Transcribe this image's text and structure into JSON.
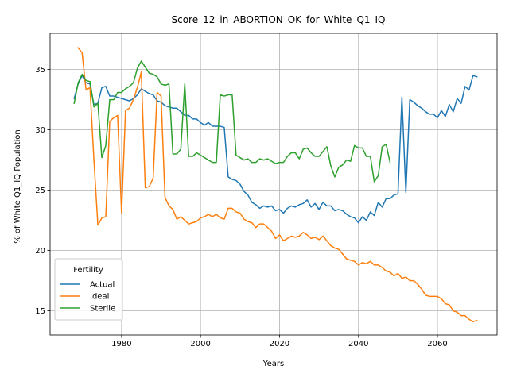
{
  "chart_data": {
    "type": "line",
    "title": "Score_12_in_ABORTION_OK_for_White_Q1_IQ",
    "xlabel": "Years",
    "ylabel": "% of White Q1_IQ Population",
    "xlim": [
      1961.9,
      2075.1
    ],
    "ylim": [
      13.0,
      38.0
    ],
    "xticks": [
      1980,
      2000,
      2020,
      2040,
      2060
    ],
    "yticks": [
      15,
      20,
      25,
      30,
      35
    ],
    "grid": true,
    "legend": {
      "title": "Fertility",
      "position": "lower-left"
    },
    "series": [
      {
        "name": "Actual",
        "color": "#1f77b4",
        "x": [
          1968,
          1969,
          1970,
          1971,
          1972,
          1973,
          1974,
          1975,
          1976,
          1977,
          1978,
          1979,
          1980,
          1981,
          1982,
          1983,
          1984,
          1985,
          1986,
          1987,
          1988,
          1989,
          1990,
          1991,
          1992,
          1993,
          1994,
          1995,
          1996,
          1997,
          1998,
          1999,
          2000,
          2001,
          2002,
          2003,
          2004,
          2005,
          2006,
          2007,
          2008,
          2009,
          2010,
          2011,
          2012,
          2013,
          2014,
          2015,
          2016,
          2017,
          2018,
          2019,
          2020,
          2021,
          2022,
          2023,
          2024,
          2025,
          2026,
          2027,
          2028,
          2029,
          2030,
          2031,
          2032,
          2033,
          2034,
          2035,
          2036,
          2037,
          2038,
          2039,
          2040,
          2041,
          2042,
          2043,
          2044,
          2045,
          2046,
          2047,
          2048,
          2049,
          2050,
          2051,
          2052,
          2053,
          2054,
          2055,
          2056,
          2057,
          2058,
          2059,
          2060,
          2061,
          2062,
          2063,
          2064,
          2065,
          2066,
          2067,
          2068,
          2069,
          2070
        ],
        "y": [
          32.6,
          33.8,
          34.5,
          33.9,
          33.8,
          32.1,
          32.2,
          33.5,
          33.6,
          32.8,
          32.8,
          32.7,
          32.6,
          32.5,
          32.4,
          32.6,
          32.9,
          33.4,
          33.2,
          33.0,
          32.9,
          32.4,
          32.3,
          32.0,
          31.9,
          31.8,
          31.8,
          31.5,
          31.2,
          31.2,
          30.9,
          30.9,
          30.6,
          30.4,
          30.6,
          30.3,
          30.3,
          30.3,
          30.2,
          26.1,
          25.9,
          25.8,
          25.5,
          24.9,
          24.6,
          24.0,
          23.8,
          23.5,
          23.7,
          23.6,
          23.7,
          23.3,
          23.4,
          23.1,
          23.5,
          23.7,
          23.6,
          23.8,
          23.9,
          24.2,
          23.6,
          23.9,
          23.4,
          24.0,
          23.7,
          23.7,
          23.3,
          23.4,
          23.3,
          23.0,
          22.8,
          22.7,
          22.3,
          22.8,
          22.5,
          23.2,
          22.9,
          24.0,
          23.6,
          24.3,
          24.3,
          24.6,
          24.7,
          32.7,
          24.8,
          32.5,
          32.3,
          32.0,
          31.8,
          31.5,
          31.3,
          31.3,
          31.0,
          31.6,
          31.1,
          32.1,
          31.5,
          32.6,
          32.2,
          33.6,
          33.3,
          34.5,
          34.4
        ]
      },
      {
        "name": "Ideal",
        "color": "#ff7f0e",
        "x": [
          1969,
          1970,
          1971,
          1972,
          1973,
          1974,
          1975,
          1976,
          1977,
          1978,
          1979,
          1980,
          1981,
          1982,
          1983,
          1984,
          1985,
          1986,
          1987,
          1988,
          1989,
          1990,
          1991,
          1992,
          1993,
          1994,
          1995,
          1996,
          1997,
          1998,
          1999,
          2000,
          2001,
          2002,
          2003,
          2004,
          2005,
          2006,
          2007,
          2008,
          2009,
          2010,
          2011,
          2012,
          2013,
          2014,
          2015,
          2016,
          2017,
          2018,
          2019,
          2020,
          2021,
          2022,
          2023,
          2024,
          2025,
          2026,
          2027,
          2028,
          2029,
          2030,
          2031,
          2032,
          2033,
          2034,
          2035,
          2036,
          2037,
          2038,
          2039,
          2040,
          2041,
          2042,
          2043,
          2044,
          2045,
          2046,
          2047,
          2048,
          2049,
          2050,
          2051,
          2052,
          2053,
          2054,
          2055,
          2056,
          2057,
          2058,
          2059,
          2060,
          2061,
          2062,
          2063,
          2064,
          2065,
          2066,
          2067,
          2068,
          2069,
          2070
        ],
        "y": [
          36.8,
          36.4,
          33.3,
          33.5,
          27.5,
          22.1,
          22.7,
          22.8,
          30.7,
          31.0,
          31.2,
          23.1,
          31.6,
          31.8,
          32.5,
          33.5,
          34.8,
          25.2,
          25.3,
          26.0,
          33.1,
          32.8,
          24.4,
          23.7,
          23.4,
          22.6,
          22.8,
          22.5,
          22.2,
          22.3,
          22.4,
          22.7,
          22.8,
          23.0,
          22.8,
          23.0,
          22.7,
          22.6,
          23.5,
          23.5,
          23.2,
          23.1,
          22.6,
          22.4,
          22.3,
          21.9,
          22.2,
          22.2,
          21.9,
          21.6,
          21.0,
          21.3,
          20.8,
          21.0,
          21.2,
          21.1,
          21.2,
          21.5,
          21.3,
          21.0,
          21.1,
          20.9,
          21.2,
          20.8,
          20.4,
          20.2,
          20.1,
          19.7,
          19.3,
          19.2,
          19.1,
          18.8,
          19.0,
          18.9,
          19.1,
          18.8,
          18.8,
          18.6,
          18.3,
          18.2,
          17.9,
          18.1,
          17.7,
          17.8,
          17.5,
          17.5,
          17.2,
          16.8,
          16.3,
          16.2,
          16.2,
          16.2,
          16.0,
          15.6,
          15.5,
          15.0,
          14.9,
          14.6,
          14.6,
          14.3,
          14.1,
          14.2
        ]
      },
      {
        "name": "Sterile",
        "color": "#2ca02c",
        "x": [
          1968,
          1969,
          1970,
          1971,
          1972,
          1973,
          1974,
          1975,
          1976,
          1977,
          1978,
          1979,
          1980,
          1981,
          1982,
          1983,
          1984,
          1985,
          1986,
          1987,
          1988,
          1989,
          1990,
          1991,
          1992,
          1993,
          1994,
          1995,
          1996,
          1997,
          1998,
          1999,
          2000,
          2001,
          2002,
          2003,
          2004,
          2005,
          2006,
          2007,
          2008,
          2009,
          2010,
          2011,
          2012,
          2013,
          2014,
          2015,
          2016,
          2017,
          2018,
          2019,
          2020,
          2021,
          2022,
          2023,
          2024,
          2025,
          2026,
          2027,
          2028,
          2029,
          2030,
          2031,
          2032,
          2033,
          2034,
          2035,
          2036,
          2037,
          2038,
          2039,
          2040,
          2041,
          2042,
          2043,
          2044,
          2045,
          2046,
          2047,
          2048
        ],
        "y": [
          32.2,
          33.9,
          34.6,
          34.1,
          34.0,
          31.9,
          32.2,
          27.7,
          28.7,
          32.5,
          32.5,
          33.1,
          33.1,
          33.4,
          33.6,
          33.9,
          35.1,
          35.7,
          35.2,
          34.7,
          34.6,
          34.4,
          33.8,
          33.7,
          33.8,
          28.0,
          28.0,
          28.4,
          33.8,
          27.8,
          27.8,
          28.1,
          27.9,
          27.7,
          27.5,
          27.3,
          27.3,
          32.9,
          32.8,
          32.9,
          32.9,
          27.9,
          27.7,
          27.5,
          27.6,
          27.3,
          27.3,
          27.6,
          27.5,
          27.6,
          27.4,
          27.2,
          27.3,
          27.3,
          27.8,
          28.1,
          28.1,
          27.6,
          28.4,
          28.5,
          28.1,
          27.8,
          27.8,
          28.2,
          28.6,
          27.0,
          26.1,
          26.9,
          27.1,
          27.5,
          27.4,
          28.7,
          28.5,
          28.5,
          27.8,
          27.8,
          25.7,
          26.2,
          28.6,
          28.8,
          27.3
        ]
      }
    ]
  }
}
